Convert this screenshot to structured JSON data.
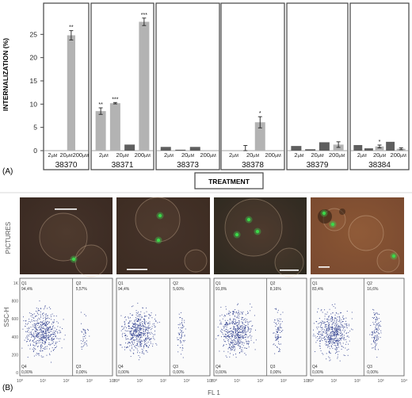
{
  "panel_a_label": "(A)",
  "panel_b_label": "(B)",
  "ylabel": "INTERNALIZATION (%)",
  "treatment_label": "TREATMENT",
  "pictures_label": "PICTURES",
  "dose_labels": [
    "2",
    "20",
    "200"
  ],
  "dose_unit": "µM",
  "flow": {
    "ylabel": "SSC-H",
    "xlabel": "FL 1",
    "yticks": [
      "1K",
      "800",
      "600",
      "400",
      "200",
      "0"
    ],
    "xticks": [
      "10⁰",
      "10¹",
      "10²",
      "10³",
      "10⁴"
    ],
    "quadrant_names": [
      "Q1",
      "Q2",
      "Q4",
      "Q3"
    ],
    "plots": [
      {
        "Q1": "94,4%",
        "Q2": "5,57%",
        "Q4": "0,00%",
        "Q3": "0,00%"
      },
      {
        "Q1": "94,4%",
        "Q2": "5,60%",
        "Q4": "0,00%",
        "Q3": "0,00%"
      },
      {
        "Q1": "91,8%",
        "Q2": "8,16%",
        "Q4": "0,00%",
        "Q3": "0,00%"
      },
      {
        "Q1": "83,4%",
        "Q2": "16,6%",
        "Q4": "0,00%",
        "Q3": "0,00%"
      }
    ]
  },
  "colors": {
    "light_bar": "#b3b3b3",
    "dark_bar": "#5f5f5f",
    "scale_bar": "#ffffff",
    "flow_dots": "#2a3a8c",
    "micro_bg": [
      "#3a2a22",
      "#3d2c22",
      "#2e2a20",
      "#7a4a30"
    ],
    "green_spot": "#3bd84a"
  },
  "chart_data": {
    "type": "bar",
    "ylim": [
      0,
      30
    ],
    "yticks": [
      0,
      5,
      10,
      15,
      20,
      25
    ],
    "groups": [
      {
        "name": "38370",
        "bars": [
          {
            "dose": "2",
            "value": 0,
            "err": 0,
            "sig": "",
            "tone": "light"
          },
          {
            "dose": "20",
            "value": 0,
            "err": 0,
            "sig": "",
            "tone": "light"
          },
          {
            "dose": "200",
            "value": 24.8,
            "err": 1.0,
            "sig": "**",
            "tone": "light"
          },
          {
            "dose": "200",
            "value": 0,
            "err": 0,
            "sig": "",
            "tone": "dark"
          }
        ]
      },
      {
        "name": "38371",
        "bars": [
          {
            "dose": "2",
            "value": 8.5,
            "err": 0.7,
            "sig": "**",
            "tone": "light"
          },
          {
            "dose": "20",
            "value": 10.2,
            "err": 0.15,
            "sig": "***",
            "tone": "light"
          },
          {
            "dose": "200",
            "value": 1.3,
            "err": 0,
            "sig": "",
            "tone": "dark"
          },
          {
            "dose": "200",
            "value": 27.7,
            "err": 0.8,
            "sig": "***",
            "tone": "light"
          }
        ]
      },
      {
        "name": "38373",
        "bars": [
          {
            "dose": "2",
            "value": 0.8,
            "err": 0,
            "sig": "",
            "tone": "dark"
          },
          {
            "dose": "20",
            "value": 0.2,
            "err": 0,
            "sig": "",
            "tone": "dark"
          },
          {
            "dose": "200",
            "value": 0.8,
            "err": 0,
            "sig": "",
            "tone": "dark"
          },
          {
            "dose": "200",
            "value": 0,
            "err": 0,
            "sig": "",
            "tone": "light"
          }
        ]
      },
      {
        "name": "38378",
        "bars": [
          {
            "dose": "2",
            "value": 0,
            "err": 0,
            "sig": "",
            "tone": "light"
          },
          {
            "dose": "20",
            "value": 0,
            "err": 1.1,
            "sig": "",
            "tone": "light"
          },
          {
            "dose": "200",
            "value": 6.1,
            "err": 1.2,
            "sig": "*",
            "tone": "light"
          },
          {
            "dose": "200",
            "value": 0,
            "err": 0,
            "sig": "",
            "tone": "dark"
          }
        ]
      },
      {
        "name": "38379",
        "bars": [
          {
            "dose": "2",
            "value": 1.0,
            "err": 0,
            "sig": "",
            "tone": "dark"
          },
          {
            "dose": "20",
            "value": 0.3,
            "err": 0,
            "sig": "",
            "tone": "dark"
          },
          {
            "dose": "200",
            "value": 1.8,
            "err": 0,
            "sig": "",
            "tone": "dark"
          },
          {
            "dose": "200",
            "value": 1.3,
            "err": 0.6,
            "sig": "",
            "tone": "light"
          }
        ]
      },
      {
        "name": "38384",
        "bars": [
          {
            "dose": "2",
            "value": 1.2,
            "err": 0,
            "sig": "",
            "tone": "dark"
          },
          {
            "dose": "20",
            "value": 0.5,
            "err": 0,
            "sig": "",
            "tone": "dark"
          },
          {
            "dose": "20",
            "value": 0.9,
            "err": 0.3,
            "sig": "*",
            "tone": "light"
          },
          {
            "dose": "200",
            "value": 1.9,
            "err": 0,
            "sig": "",
            "tone": "dark"
          },
          {
            "dose": "200",
            "value": 0.4,
            "err": 0.2,
            "sig": "",
            "tone": "light"
          }
        ]
      }
    ]
  }
}
